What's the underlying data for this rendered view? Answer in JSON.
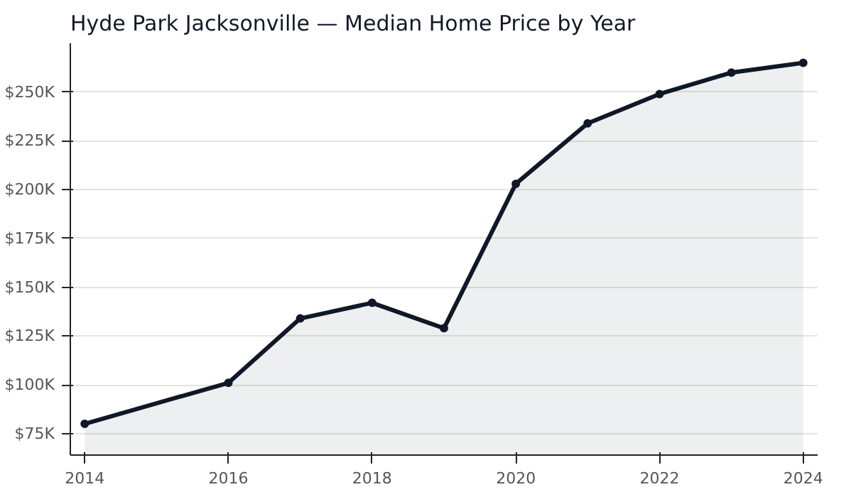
{
  "chart_data": {
    "type": "area",
    "title": "Hyde Park Jacksonville — Median Home Price by Year",
    "x": [
      2014,
      2016,
      2017,
      2018,
      2019,
      2020,
      2021,
      2022,
      2023,
      2024
    ],
    "series": [
      {
        "color": "#101828",
        "values": [
          80000,
          101000,
          134000,
          142000,
          129000,
          203000,
          234000,
          249000,
          260000,
          265000
        ]
      }
    ],
    "xlim": [
      2013.8,
      2024.2
    ],
    "xticks": [
      2014,
      2016,
      2018,
      2020,
      2022,
      2024
    ],
    "ylim": [
      64000,
      275000
    ],
    "yticks": [
      {
        "value": 75000,
        "label": "$75K"
      },
      {
        "value": 100000,
        "label": "$100K"
      },
      {
        "value": 125000,
        "label": "$125K"
      },
      {
        "value": 150000,
        "label": "$150K"
      },
      {
        "value": 175000,
        "label": "$175K"
      },
      {
        "value": 200000,
        "label": "$200K"
      },
      {
        "value": 225000,
        "label": "$225K"
      },
      {
        "value": 250000,
        "label": "$250K"
      }
    ],
    "grid": "y",
    "marker": "circle",
    "line_style": "solid"
  }
}
